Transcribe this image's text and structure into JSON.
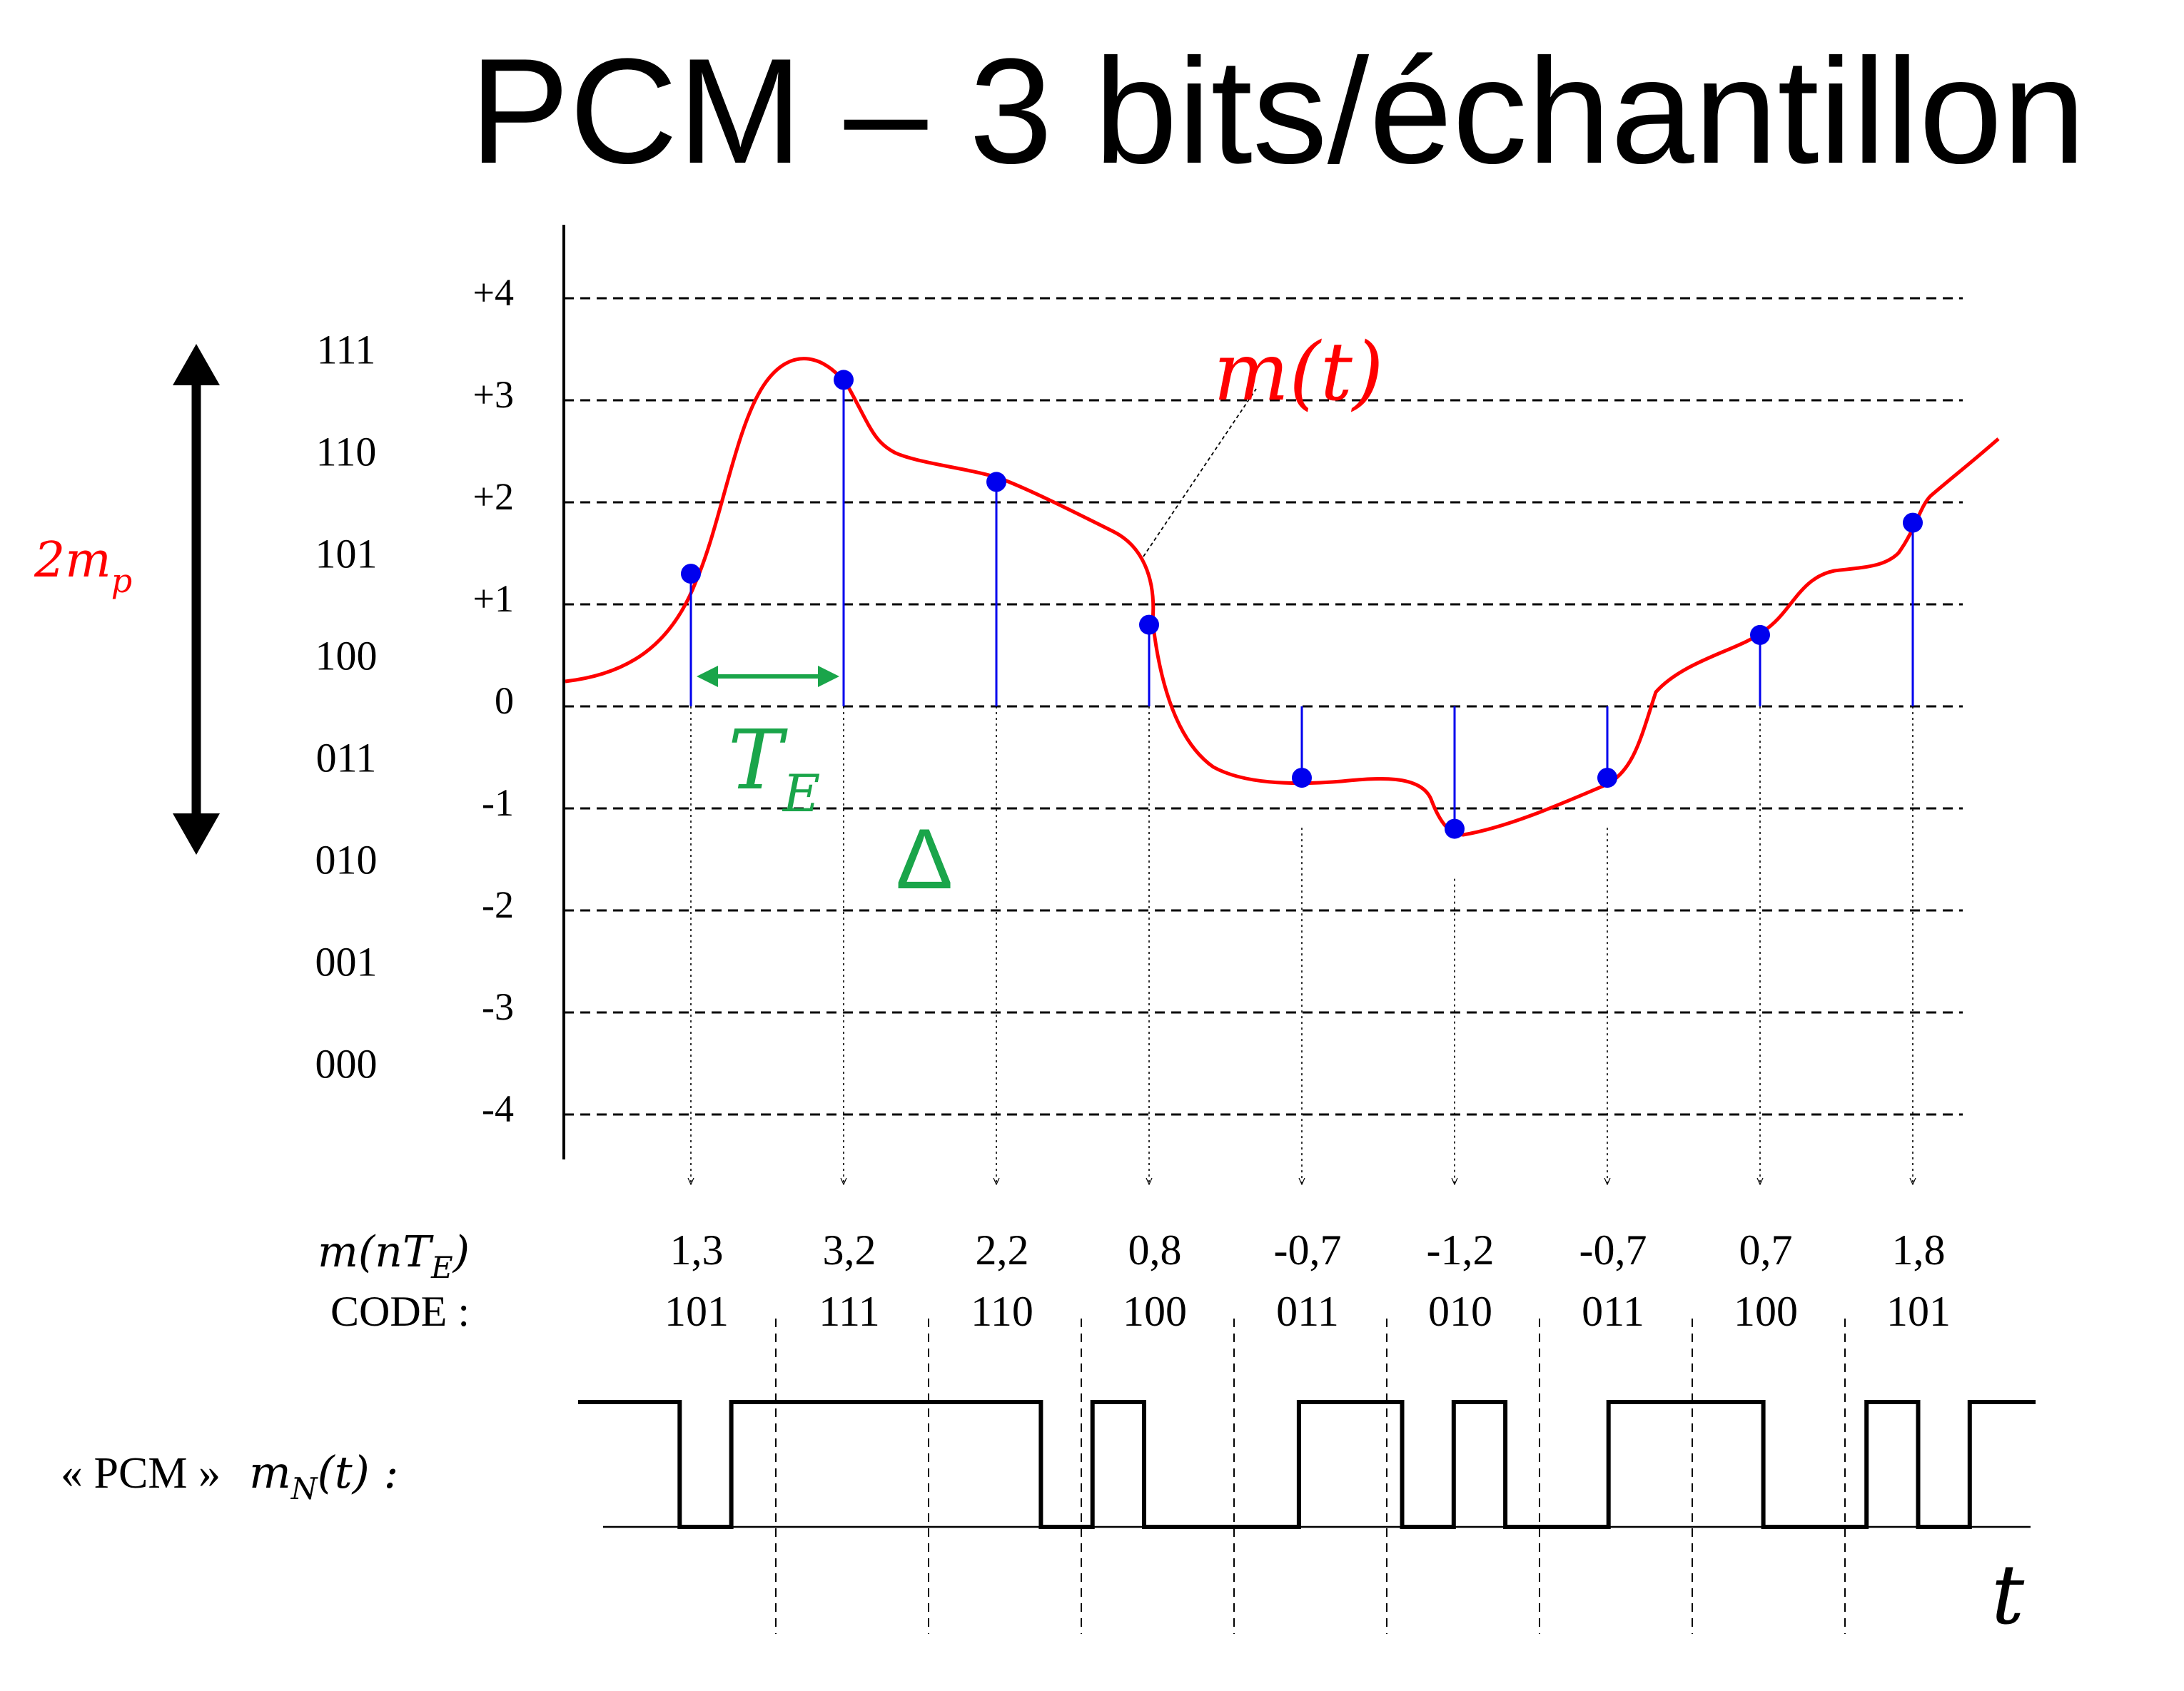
{
  "title": "PCM – 3 bits/échantillon",
  "amplitude_label": {
    "base": "2m",
    "sub": "p"
  },
  "curve_label": "m(t)",
  "period_label": {
    "base": "T",
    "sub": "E"
  },
  "step_label": "Δ",
  "codes_by_level": [
    "111",
    "110",
    "101",
    "100",
    "011",
    "010",
    "001",
    "000"
  ],
  "y_tick_labels": [
    "+4",
    "+3",
    "+2",
    "+1",
    "0",
    "-1",
    "-2",
    "-3",
    "-4"
  ],
  "table": {
    "sample_row_label": "m(nT",
    "sample_row_sub": "E",
    "sample_row_end": ")",
    "code_row_label": "CODE :",
    "samples": [
      "1,3",
      "3,2",
      "2,2",
      "0,8",
      "-0,7",
      "-1,2",
      "-0,7",
      "0,7",
      "1,8"
    ],
    "codes": [
      "101",
      "111",
      "110",
      "100",
      "011",
      "010",
      "011",
      "100",
      "101"
    ]
  },
  "pcm_label": {
    "prefix": "« PCM »",
    "func": "m",
    "sub": "N",
    "args": "(t) :"
  },
  "time_label": "t",
  "colors": {
    "signal": "#ff0000",
    "samples": "#0000ee",
    "annotation": "#1aa54a",
    "axis": "#000000"
  },
  "chart_data": {
    "type": "line",
    "title": "PCM – 3 bits/échantillon",
    "xlabel": "t",
    "ylabel": "",
    "ylim": [
      -4,
      4
    ],
    "yticks": [
      "+4",
      "+3",
      "+2",
      "+1",
      "0",
      "-1",
      "-2",
      "-3",
      "-4"
    ],
    "grid": true,
    "series": [
      {
        "name": "m(t)",
        "x": [
          1,
          2,
          3,
          4,
          5,
          6,
          7,
          8,
          9
        ],
        "values": [
          1.3,
          3.2,
          2.2,
          0.8,
          -0.7,
          -1.2,
          -0.7,
          0.7,
          1.8
        ]
      }
    ],
    "codes": [
      "101",
      "111",
      "110",
      "100",
      "011",
      "010",
      "011",
      "100",
      "101"
    ]
  }
}
